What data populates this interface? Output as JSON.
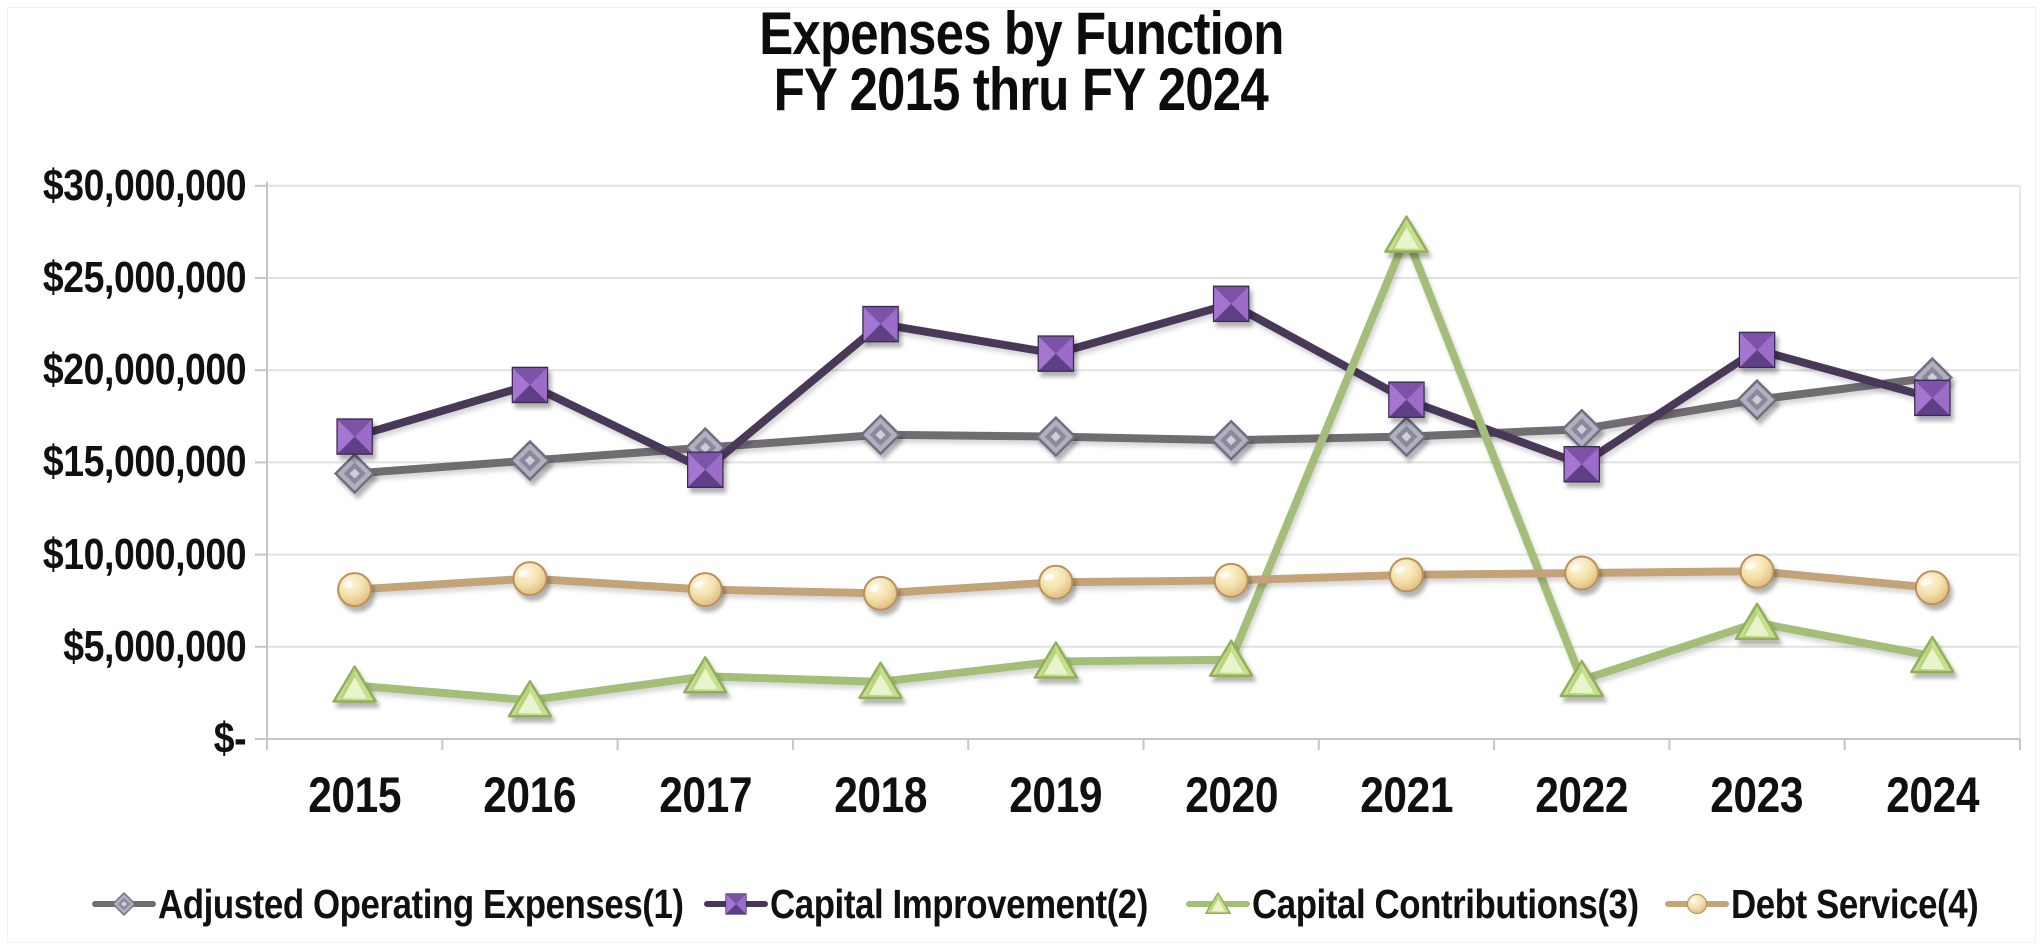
{
  "title": {
    "line1": "Expenses by Function",
    "line2": "FY 2015 thru FY 2024"
  },
  "y_axis": {
    "tick_labels": [
      "$30,000,000",
      "$25,000,000",
      "$20,000,000",
      "$15,000,000",
      "$10,000,000",
      "$5,000,000",
      "$-"
    ]
  },
  "x_axis": {
    "categories": [
      "2015",
      "2016",
      "2017",
      "2018",
      "2019",
      "2020",
      "2021",
      "2022",
      "2023",
      "2024"
    ]
  },
  "legend": {
    "position": "bottom"
  },
  "colors": {
    "gridline": "#e2e2e2",
    "axis_line": "#c6c6c6",
    "text": "#101010",
    "background": "#ffffff"
  },
  "chart_data": {
    "type": "line",
    "title": "Expenses by Function FY 2015 thru FY 2024",
    "categories": [
      "2015",
      "2016",
      "2017",
      "2018",
      "2019",
      "2020",
      "2021",
      "2022",
      "2023",
      "2024"
    ],
    "ylim": [
      0,
      30000000
    ],
    "y_tick_step": 5000000,
    "grid": true,
    "legend_position": "bottom",
    "series": [
      {
        "id": "adjusted-operating-expenses",
        "name": "Adjusted Operating Expenses(1)",
        "marker": "diamond",
        "color": "#6f6c72",
        "marker_fill": "#b2afc1",
        "values": [
          14400000,
          15100000,
          15800000,
          16500000,
          16400000,
          16200000,
          16400000,
          16800000,
          18400000,
          19600000
        ]
      },
      {
        "id": "capital-improvement",
        "name": "Capital Improvement(2)",
        "marker": "square",
        "color": "#483758",
        "marker_fill": "#7b52a6",
        "values": [
          16400000,
          19200000,
          14600000,
          22500000,
          20900000,
          23600000,
          18400000,
          14900000,
          21100000,
          18500000
        ]
      },
      {
        "id": "capital-contributions",
        "name": "Capital Contributions(3)",
        "marker": "triangle",
        "color": "#a4bd79",
        "marker_fill": "#c6e08f",
        "values": [
          2900000,
          2100000,
          3400000,
          3100000,
          4200000,
          4300000,
          27300000,
          3200000,
          6300000,
          4500000
        ]
      },
      {
        "id": "debt-service",
        "name": "Debt Service(4)",
        "marker": "circle",
        "color": "#c3a377",
        "marker_fill": "#f0dcab",
        "values": [
          8100000,
          8700000,
          8100000,
          7900000,
          8500000,
          8600000,
          8900000,
          9000000,
          9100000,
          8200000
        ]
      }
    ]
  }
}
